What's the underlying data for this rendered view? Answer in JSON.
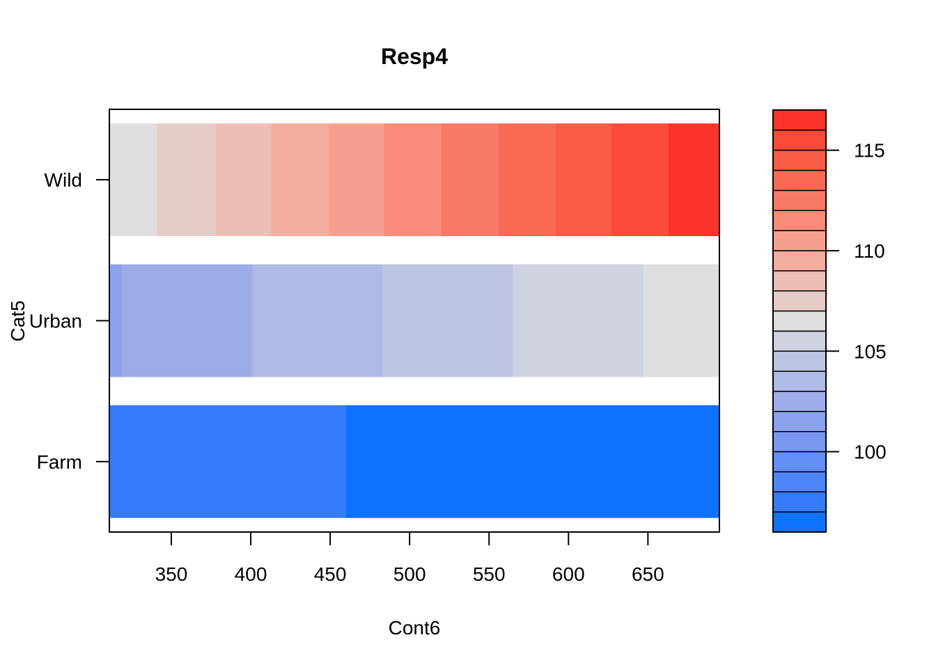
{
  "chart_data": {
    "type": "heatmap",
    "title": "Resp4",
    "xlabel": "Cont6",
    "ylabel": "Cat5",
    "xlim": [
      311,
      695
    ],
    "x_ticks": [
      350,
      400,
      450,
      500,
      550,
      600,
      650
    ],
    "categories": [
      "Farm",
      "Urban",
      "Wild"
    ],
    "grid": false,
    "legend": "right",
    "colorkey": {
      "breaks": [
        96,
        97,
        98,
        99,
        100,
        101,
        102,
        103,
        104,
        105,
        106,
        107,
        108,
        109,
        110,
        111,
        112,
        113,
        114,
        115,
        116,
        117
      ],
      "colors": [
        "#0F72FF",
        "#347CFA",
        "#4C86F8",
        "#638FF6",
        "#7898F2",
        "#8CA2EE",
        "#9DADEA",
        "#AFBAE6",
        "#BEC5E2",
        "#CFD2E0",
        "#DEDEDE",
        "#E6CCC7",
        "#EDBEB5",
        "#F2AE9F",
        "#F5A08E",
        "#F88C79",
        "#F97B67",
        "#F96A55",
        "#FA5B46",
        "#FB4B38",
        "#FD3229"
      ],
      "ticks": [
        100,
        105,
        110,
        115
      ]
    },
    "series": [
      {
        "category": "Wild",
        "segments": [
          {
            "x": [
              311,
              341
            ],
            "value": 106.5
          },
          {
            "x": [
              341,
              378
            ],
            "value": 107.5
          },
          {
            "x": [
              378,
              413
            ],
            "value": 108.5
          },
          {
            "x": [
              413,
              449
            ],
            "value": 109.5
          },
          {
            "x": [
              449,
              484
            ],
            "value": 110.5
          },
          {
            "x": [
              484,
              520
            ],
            "value": 111.5
          },
          {
            "x": [
              520,
              556
            ],
            "value": 112.5
          },
          {
            "x": [
              556,
              592
            ],
            "value": 113.5
          },
          {
            "x": [
              592,
              627
            ],
            "value": 114.5
          },
          {
            "x": [
              627,
              663
            ],
            "value": 115.5
          },
          {
            "x": [
              663,
              695
            ],
            "value": 116.5
          }
        ]
      },
      {
        "category": "Urban",
        "segments": [
          {
            "x": [
              311,
              319
            ],
            "value": 101.5
          },
          {
            "x": [
              319,
              401
            ],
            "value": 102.5
          },
          {
            "x": [
              401,
              483
            ],
            "value": 103.5
          },
          {
            "x": [
              483,
              565
            ],
            "value": 104.5
          },
          {
            "x": [
              565,
              647
            ],
            "value": 105.5
          },
          {
            "x": [
              647,
              695
            ],
            "value": 106.5
          }
        ]
      },
      {
        "category": "Farm",
        "segments": [
          {
            "x": [
              311,
              460
            ],
            "value": 97.5
          },
          {
            "x": [
              460,
              695
            ],
            "value": 96.5
          }
        ]
      }
    ]
  }
}
